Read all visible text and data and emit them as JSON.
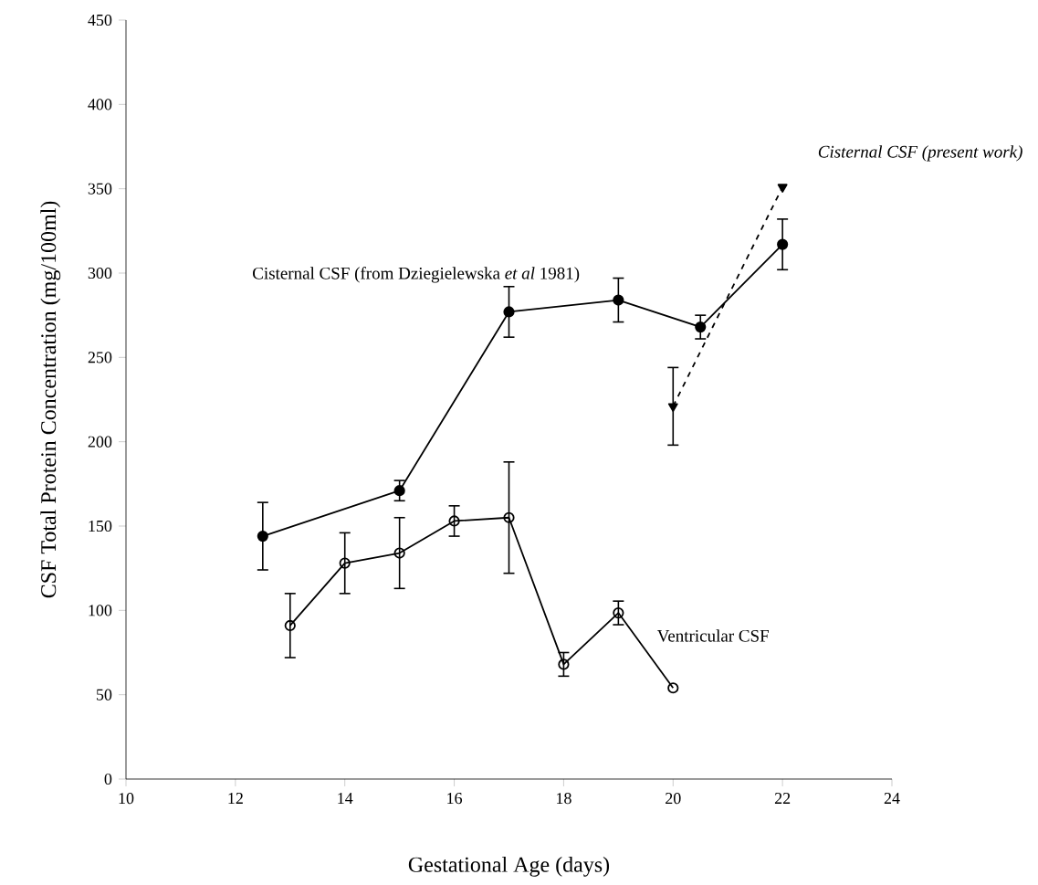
{
  "chart_data": {
    "type": "line",
    "xlabel": "Gestational Age (days)",
    "ylabel": "CSF Total Protein Concentration (mg/100ml)",
    "xlim": [
      10,
      24
    ],
    "xticks": [
      10,
      12,
      14,
      16,
      18,
      20,
      22,
      24
    ],
    "ylim": [
      0,
      450
    ],
    "yticks": [
      0,
      50,
      100,
      150,
      200,
      250,
      300,
      350,
      400,
      450
    ],
    "series": [
      {
        "name": "Cisternal CSF (from Dziegielewska *et al* 1981)",
        "color": "#000000",
        "marker": "circle",
        "line_style": "solid",
        "x": [
          12.5,
          15,
          17,
          19,
          20.5,
          22
        ],
        "values": [
          144,
          171,
          277,
          284,
          268,
          317
        ],
        "errors": [
          20,
          6,
          15,
          13,
          7,
          15
        ]
      },
      {
        "name": "Cisternal CSF (present work)",
        "color": "#000000",
        "marker": "triangle",
        "line_style": "dashed",
        "x": [
          20,
          22
        ],
        "values": [
          221,
          351
        ],
        "errors": [
          23,
          null
        ]
      },
      {
        "name": "Ventricular CSF",
        "color": "#000000",
        "marker": "open circle",
        "line_style": "solid",
        "x": [
          13,
          14,
          15,
          16,
          17,
          18,
          19,
          20
        ],
        "values": [
          91,
          128,
          134,
          153,
          155,
          68,
          98.5,
          54
        ],
        "errors": [
          19,
          18,
          21,
          9,
          33,
          7,
          7,
          null
        ]
      }
    ]
  }
}
